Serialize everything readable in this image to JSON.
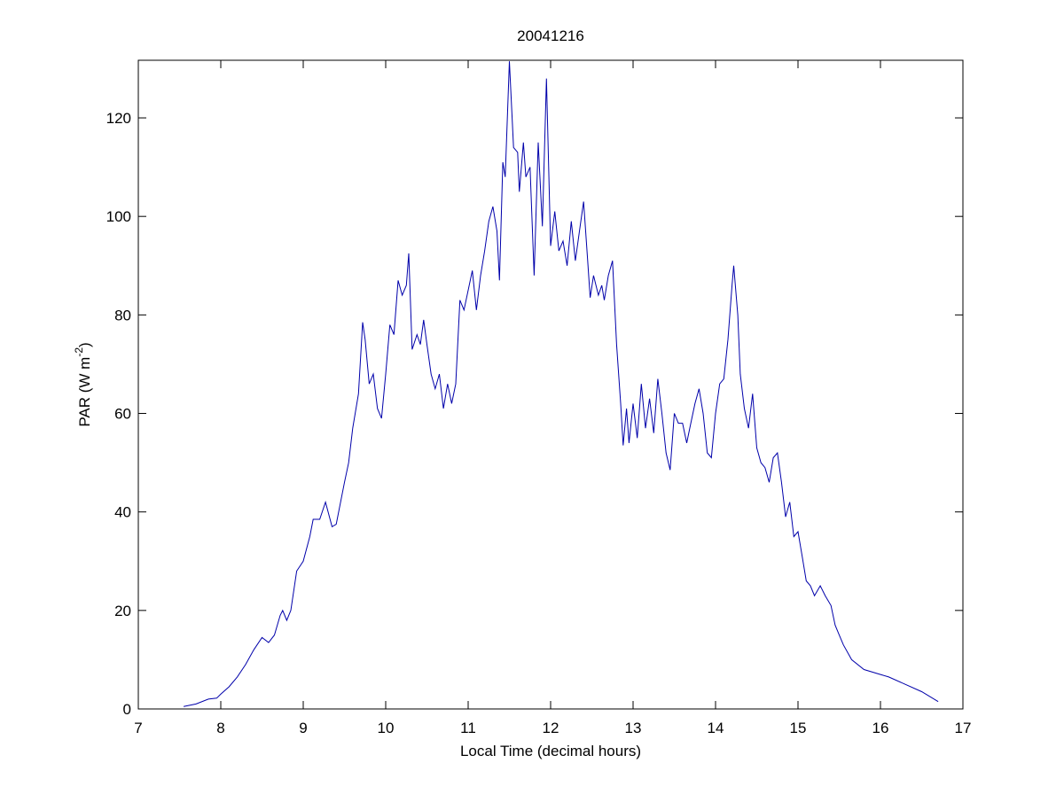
{
  "chart_data": {
    "type": "line",
    "title": "20041216",
    "xlabel": "Local Time (decimal hours)",
    "ylabel": [
      "PAR (W m",
      "-2",
      ")"
    ],
    "xlim": [
      7,
      17
    ],
    "xticks": [
      7,
      8,
      9,
      10,
      11,
      12,
      13,
      14,
      15,
      16,
      17
    ],
    "ylim": [
      0,
      131.7
    ],
    "yticks": [
      0,
      20,
      40,
      60,
      80,
      100,
      120
    ],
    "grid": false,
    "x": [
      7.55,
      7.7,
      7.85,
      7.95,
      8.0,
      8.1,
      8.2,
      8.3,
      8.4,
      8.5,
      8.58,
      8.65,
      8.72,
      8.75,
      8.8,
      8.85,
      8.92,
      9.0,
      9.08,
      9.12,
      9.2,
      9.27,
      9.35,
      9.4,
      9.5,
      9.55,
      9.6,
      9.67,
      9.72,
      9.75,
      9.8,
      9.85,
      9.9,
      9.95,
      10.0,
      10.05,
      10.1,
      10.15,
      10.2,
      10.25,
      10.28,
      10.32,
      10.38,
      10.42,
      10.46,
      10.5,
      10.55,
      10.6,
      10.65,
      10.7,
      10.75,
      10.8,
      10.85,
      10.9,
      10.95,
      11.05,
      11.1,
      11.15,
      11.2,
      11.25,
      11.3,
      11.35,
      11.38,
      11.42,
      11.45,
      11.5,
      11.55,
      11.6,
      11.62,
      11.67,
      11.7,
      11.75,
      11.8,
      11.85,
      11.9,
      11.95,
      12.0,
      12.05,
      12.1,
      12.15,
      12.2,
      12.25,
      12.3,
      12.35,
      12.4,
      12.45,
      12.48,
      12.52,
      12.58,
      12.62,
      12.65,
      12.7,
      12.75,
      12.8,
      12.85,
      12.88,
      12.92,
      12.95,
      13.0,
      13.05,
      13.1,
      13.15,
      13.2,
      13.25,
      13.3,
      13.35,
      13.4,
      13.45,
      13.5,
      13.55,
      13.6,
      13.65,
      13.7,
      13.75,
      13.8,
      13.85,
      13.9,
      13.95,
      14.0,
      14.05,
      14.1,
      14.15,
      14.2,
      14.22,
      14.27,
      14.3,
      14.35,
      14.4,
      14.45,
      14.5,
      14.55,
      14.6,
      14.65,
      14.7,
      14.75,
      14.8,
      14.85,
      14.9,
      14.95,
      15.0,
      15.05,
      15.1,
      15.15,
      15.2,
      15.27,
      15.33,
      15.4,
      15.45,
      15.5,
      15.55,
      15.65,
      15.8,
      16.0,
      16.1,
      16.3,
      16.5,
      16.7
    ],
    "series": [
      {
        "color": "#0000aa",
        "values": [
          0.5,
          1,
          2,
          2.2,
          3,
          4.5,
          6.5,
          9,
          12,
          14.5,
          13.5,
          15,
          19,
          20,
          18,
          20,
          28,
          30,
          35,
          38.5,
          38.5,
          42,
          37,
          37.5,
          46,
          50,
          57,
          64,
          78.5,
          75,
          66,
          68,
          61,
          59,
          68,
          78,
          76,
          87,
          84,
          86,
          92.5,
          73,
          76,
          74,
          79,
          74,
          68,
          65,
          68,
          61,
          66,
          62,
          66,
          83,
          81,
          89,
          81,
          88,
          93,
          99,
          102,
          97,
          87,
          111,
          108,
          131.5,
          114,
          113,
          105,
          115,
          108,
          110,
          88,
          115,
          98,
          128,
          94,
          101,
          93,
          95,
          90,
          99,
          91,
          97,
          103,
          91,
          83.5,
          88,
          84,
          86,
          83,
          88,
          91,
          74,
          62,
          53.5,
          61,
          54,
          62,
          55,
          66,
          57,
          63,
          56,
          67,
          60,
          52,
          48.5,
          60,
          58,
          58,
          54,
          58,
          62,
          65,
          60,
          52,
          51,
          60,
          66,
          67,
          75,
          86,
          90,
          80,
          68,
          61,
          57,
          64,
          53,
          50,
          49,
          46,
          51,
          52,
          46,
          39,
          42,
          35,
          36,
          31,
          26,
          25,
          23,
          25,
          23,
          21,
          17,
          15,
          13,
          10,
          8,
          7,
          6.5,
          5,
          3.5,
          1.5
        ]
      }
    ]
  }
}
